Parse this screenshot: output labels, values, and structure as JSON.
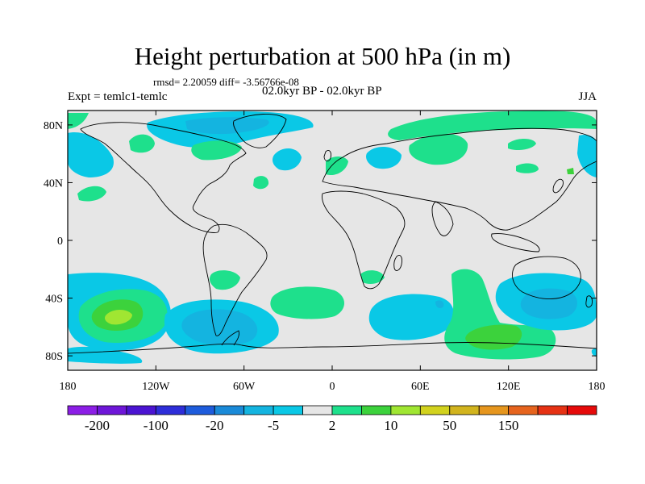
{
  "title": "Height perturbation at 500 hPa (in m)",
  "stats_text": "rmsd= 2.20059 diff= -3.56766e-08",
  "experiment_label": "Expt = temlc1-temlc",
  "period_label": "02.0kyr BP - 02.0kyr BP",
  "season_label": "JJA",
  "lat_ticks": [
    "80N",
    "40N",
    "0",
    "40S",
    "80S"
  ],
  "lon_ticks": [
    "180",
    "120W",
    "60W",
    "0",
    "60E",
    "120E",
    "180"
  ],
  "colorbar": {
    "colors": [
      "#8C1EE6",
      "#6E16D8",
      "#4B14D2",
      "#2E2ED9",
      "#1E5CDC",
      "#1A8AD8",
      "#14B4E0",
      "#0AC8E6",
      "#E6E6E6",
      "#1EE08C",
      "#3CD23C",
      "#A0E632",
      "#D2D21E",
      "#D2B41E",
      "#E6961E",
      "#E6641E",
      "#E63214",
      "#E60A0A"
    ],
    "labels": [
      "-200",
      "-100",
      "-20",
      "-5",
      "2",
      "10",
      "50",
      "150"
    ]
  },
  "fields": {
    "background": "#E6E6E6",
    "neg_light": "#0AC8E6",
    "neg_mid": "#14B4E0",
    "neg_deep": "#1A8AD8",
    "pos_light": "#1EE08C",
    "pos_mid": "#3CD23C",
    "pos_strong": "#A0E632"
  }
}
